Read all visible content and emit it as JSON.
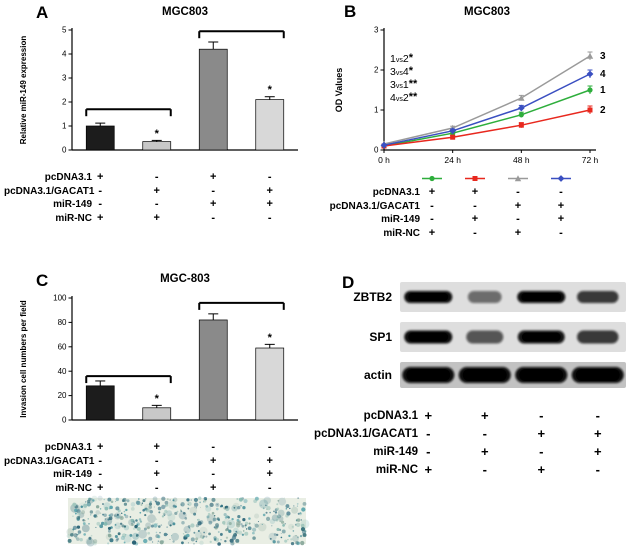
{
  "panelA": {
    "label": "A",
    "title": "MGC803",
    "conditions": {
      "rows": [
        {
          "label": "pcDNA3.1",
          "signs": [
            "+",
            "-",
            "+",
            "-"
          ]
        },
        {
          "label": "pcDNA3.1/GACAT1",
          "signs": [
            "-",
            "+",
            "-",
            "+"
          ]
        },
        {
          "label": "miR-149",
          "signs": [
            "-",
            "-",
            "+",
            "+"
          ]
        },
        {
          "label": "miR-NC",
          "signs": [
            "+",
            "+",
            "-",
            "-"
          ]
        }
      ]
    }
  },
  "panelB": {
    "label": "B",
    "title": "MGC803",
    "conditions": {
      "rows": [
        {
          "label": "pcDNA3.1",
          "signs": [
            "+",
            "+",
            "-",
            "-"
          ]
        },
        {
          "label": "pcDNA3.1/GACAT1",
          "signs": [
            "-",
            "-",
            "+",
            "+"
          ]
        },
        {
          "label": "miR-149",
          "signs": [
            "-",
            "+",
            "-",
            "+"
          ]
        },
        {
          "label": "miR-NC",
          "signs": [
            "+",
            "-",
            "+",
            "-"
          ]
        }
      ]
    }
  },
  "panelC": {
    "label": "C",
    "title": "MGC-803",
    "micrograph": "transwell invasion assay micrograph with blue stained cells",
    "conditions": {
      "rows": [
        {
          "label": "pcDNA3.1",
          "signs": [
            "+",
            "+",
            "-",
            "-"
          ]
        },
        {
          "label": "pcDNA3.1/GACAT1",
          "signs": [
            "-",
            "-",
            "+",
            "+"
          ]
        },
        {
          "label": "miR-149",
          "signs": [
            "-",
            "+",
            "-",
            "+"
          ]
        },
        {
          "label": "miR-NC",
          "signs": [
            "+",
            "-",
            "+",
            "-"
          ]
        }
      ]
    }
  },
  "panelD": {
    "label": "D",
    "blot": {
      "targets": [
        {
          "label": "ZBTB2",
          "intensities": [
            1,
            0.35,
            1,
            0.7
          ]
        },
        {
          "label": "SP1",
          "intensities": [
            1,
            0.5,
            0.95,
            0.7
          ]
        },
        {
          "label": "actin",
          "intensities": [
            1,
            1,
            1,
            1
          ]
        }
      ]
    },
    "conditions": {
      "rows": [
        {
          "label": "pcDNA3.1",
          "signs": [
            "+",
            "+",
            "-",
            "-"
          ]
        },
        {
          "label": "pcDNA3.1/GACAT1",
          "signs": [
            "-",
            "-",
            "+",
            "+"
          ]
        },
        {
          "label": "miR-149",
          "signs": [
            "-",
            "+",
            "-",
            "+"
          ]
        },
        {
          "label": "miR-NC",
          "signs": [
            "+",
            "-",
            "+",
            "-"
          ]
        }
      ]
    }
  },
  "chart_data": [
    {
      "type": "bar",
      "panel": "A",
      "title": "MGC803",
      "xlabel": "",
      "ylabel": "Relative miR-149 expression",
      "ylim": [
        0,
        5
      ],
      "yticks": [
        0,
        1,
        2,
        3,
        4,
        5
      ],
      "categories": [
        "pcDNA3.1 + miR-NC",
        "pcDNA3.1/GACAT1 + miR-NC",
        "pcDNA3.1 + miR-149",
        "pcDNA3.1/GACAT1 + miR-149"
      ],
      "values": [
        1.0,
        0.35,
        4.2,
        2.1
      ],
      "errors": [
        0.12,
        0.05,
        0.3,
        0.12
      ],
      "bar_colors": [
        "#1c1c1c",
        "#c8c8c8",
        "#8a8a8a",
        "#d8d8d8"
      ],
      "significance": [
        "",
        "*",
        "",
        "*"
      ],
      "brackets": [
        {
          "from": 0,
          "to": 1,
          "y": 1.7
        },
        {
          "from": 2,
          "to": 3,
          "y": 4.95
        }
      ]
    },
    {
      "type": "line",
      "panel": "B",
      "title": "MGC803",
      "xlabel": "",
      "ylabel": "OD Values",
      "ylim": [
        0,
        3
      ],
      "yticks": [
        0,
        1,
        2,
        3
      ],
      "x": [
        "0 h",
        "24 h",
        "48 h",
        "72 h"
      ],
      "series": [
        {
          "name": "1",
          "color": "#2eae3c",
          "marker": "circle",
          "values": [
            0.1,
            0.42,
            0.88,
            1.5
          ]
        },
        {
          "name": "2",
          "color": "#e8281e",
          "marker": "square",
          "values": [
            0.1,
            0.32,
            0.62,
            1.0
          ]
        },
        {
          "name": "3",
          "color": "#9a9a9a",
          "marker": "triangle",
          "values": [
            0.15,
            0.55,
            1.3,
            2.35
          ]
        },
        {
          "name": "4",
          "color": "#3a4fc1",
          "marker": "diamond",
          "values": [
            0.12,
            0.48,
            1.05,
            1.9
          ]
        }
      ],
      "annotations": [
        "1vs2*",
        "3vs4*",
        "3vs1**",
        "4vs2**"
      ],
      "curve_number_labels": [
        "3",
        "4",
        "1",
        "2"
      ],
      "legend_position": "below"
    },
    {
      "type": "bar",
      "panel": "C",
      "title": "MGC-803",
      "xlabel": "",
      "ylabel": "Invasion cell numbers per field",
      "ylim": [
        0,
        100
      ],
      "yticks": [
        0,
        20,
        40,
        60,
        80,
        100
      ],
      "categories": [
        "pcDNA3.1 + miR-NC",
        "pcDNA3.1 + miR-149",
        "pcDNA3.1/GACAT1 + miR-NC",
        "pcDNA3.1/GACAT1 + miR-149"
      ],
      "values": [
        28,
        10,
        82,
        59
      ],
      "errors": [
        4,
        2,
        5,
        3
      ],
      "bar_colors": [
        "#1c1c1c",
        "#c8c8c8",
        "#8a8a8a",
        "#d8d8d8"
      ],
      "significance": [
        "",
        "*",
        "",
        "*"
      ],
      "brackets": [
        {
          "from": 0,
          "to": 1,
          "y": 36
        },
        {
          "from": 2,
          "to": 3,
          "y": 96
        }
      ]
    }
  ]
}
